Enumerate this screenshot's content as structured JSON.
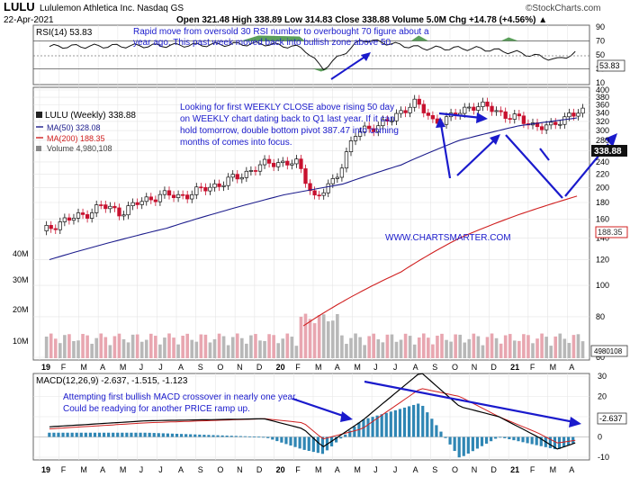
{
  "header": {
    "symbol": "LULU",
    "company": "Lululemon Athletica Inc. Nasdaq GS",
    "brand": "©StockCharts.com",
    "date": "22-Apr-2021",
    "quote": "Open 321.48  High 338.89  Low 314.83  Close 338.88  Volume 5.0M  Chg +14.78 (+4.56%) ▲"
  },
  "rsi_panel": {
    "label": "RSI(14) 53.83",
    "value_badge": "53.83",
    "ticks": [
      "90",
      "70",
      "50",
      "30",
      "10"
    ],
    "annotation": [
      "Rapid move from oversold 30 RSI number to overbought 70 figure about a",
      "year ago. This past week moved back into bullish zone above 50."
    ]
  },
  "price_panel": {
    "legend": [
      {
        "text": "LULU (Weekly) 338.88",
        "color": "#222222"
      },
      {
        "text": "MA(50) 328.08",
        "color": "#1c1c8c"
      },
      {
        "text": "MA(200) 188.35",
        "color": "#d02020"
      },
      {
        "text": "Volume 4,980,108",
        "color": "#444444"
      }
    ],
    "annotation": [
      "Looking for first WEEKLY CLOSE above rising 50 day",
      "on WEEKLY chart dating back to Q1 last year. If it can",
      "hold tomorrow, double bottom pivot 387.47 into coming",
      "months of comes into focus."
    ],
    "watermark": "WWW.CHARTSMARTER.COM",
    "price_ticks": [
      "400",
      "380",
      "360",
      "340",
      "320",
      "300",
      "280",
      "260",
      "240",
      "220",
      "200",
      "180",
      "160",
      "140",
      "120",
      "100",
      "80",
      "60"
    ],
    "volume_ticks": [
      "40M",
      "30M",
      "20M",
      "10M"
    ],
    "last_price_badge": "338.88",
    "ma200_badge": "188.35",
    "volume_badge": "4980108"
  },
  "macd_panel": {
    "label": "MACD(12,26,9) -2.637, -1.515, -1.123",
    "value_badge": "-2.637",
    "ticks": [
      "30",
      "20",
      "10",
      "0",
      "-10"
    ],
    "annotation": [
      "Attempting first bullish MACD crossover in nearly one year.",
      "Could be readying for another PRICE ramp up."
    ]
  },
  "x_axis": [
    "19",
    "F",
    "M",
    "A",
    "M",
    "J",
    "J",
    "A",
    "S",
    "O",
    "N",
    "D",
    "20",
    "F",
    "M",
    "A",
    "M",
    "J",
    "J",
    "A",
    "S",
    "O",
    "N",
    "D",
    "21",
    "F",
    "M",
    "A"
  ],
  "chart_data": {
    "type": "line",
    "title": "LULU Lululemon Athletica Inc. Nasdaq GS",
    "frequency": "weekly",
    "x_range": [
      "2019-01",
      "2021-04"
    ],
    "price_scale": "log",
    "price_range": [
      60,
      400
    ],
    "grid": true,
    "colors": {
      "up": "#111111",
      "down": "#c8102e",
      "ma50": "#1c1c8c",
      "ma200": "#d02020",
      "macd": "#000000",
      "signal": "#d02020",
      "histogram": "#2f86b4",
      "annotation": "#1a1acc"
    },
    "price_series_monthly_close": {
      "x": [
        "2019-01",
        "2019-02",
        "2019-03",
        "2019-04",
        "2019-05",
        "2019-06",
        "2019-07",
        "2019-08",
        "2019-09",
        "2019-10",
        "2019-11",
        "2019-12",
        "2020-01",
        "2020-02",
        "2020-03",
        "2020-04",
        "2020-05",
        "2020-06",
        "2020-07",
        "2020-08",
        "2020-09",
        "2020-10",
        "2020-11",
        "2020-12",
        "2021-01",
        "2021-02",
        "2021-03",
        "2021-04"
      ],
      "close": [
        145,
        158,
        163,
        176,
        168,
        180,
        190,
        188,
        195,
        205,
        215,
        232,
        240,
        238,
        185,
        210,
        290,
        310,
        325,
        370,
        320,
        330,
        360,
        350,
        330,
        315,
        305,
        338.88
      ]
    },
    "ma50": {
      "x": [
        "2019-01",
        "2019-07",
        "2020-01",
        "2020-04",
        "2020-07",
        "2020-10",
        "2021-01",
        "2021-04"
      ],
      "values": [
        120,
        150,
        190,
        205,
        235,
        280,
        310,
        328.08
      ]
    },
    "ma200": {
      "x": [
        "2020-02",
        "2020-07",
        "2020-10",
        "2021-01",
        "2021-04"
      ],
      "values": [
        75,
        110,
        140,
        165,
        188.35
      ]
    },
    "rsi": {
      "x": [
        "2019-01",
        "2019-06",
        "2019-12",
        "2020-02",
        "2020-03",
        "2020-05",
        "2020-08",
        "2020-11",
        "2021-01",
        "2021-03",
        "2021-04"
      ],
      "values": [
        62,
        63,
        66,
        60,
        30,
        72,
        60,
        59,
        53,
        43,
        53.83
      ],
      "range": [
        10,
        90
      ]
    },
    "macd": {
      "x": [
        "2019-01",
        "2019-06",
        "2019-12",
        "2020-02",
        "2020-03",
        "2020-05",
        "2020-08",
        "2020-10",
        "2020-12",
        "2021-02",
        "2021-03",
        "2021-04"
      ],
      "macd": [
        5,
        8,
        9,
        4,
        -5,
        8,
        32,
        15,
        10,
        0,
        -6,
        -2.637
      ],
      "signal": [
        4,
        7,
        9,
        7,
        -1,
        4,
        24,
        20,
        10,
        2,
        -3,
        -1.515
      ],
      "histogram": [
        1,
        1,
        0,
        -3,
        -4,
        4,
        8,
        -5,
        0,
        -2,
        -3,
        -1.123
      ],
      "range": [
        -10,
        30
      ]
    }
  }
}
